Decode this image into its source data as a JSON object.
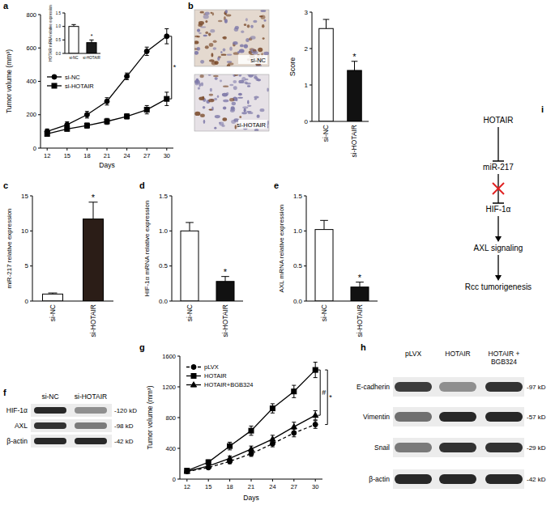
{
  "panel_labels": [
    "a",
    "b",
    "c",
    "d",
    "e",
    "f",
    "g",
    "h",
    "i"
  ],
  "chart_data": [
    {
      "type": "line",
      "xlabel": "Days",
      "ylabel": "Tumor volume (mm³)",
      "x": [
        12,
        15,
        18,
        21,
        24,
        27,
        30
      ],
      "xlim": [
        11,
        31
      ],
      "xticks": [
        12,
        15,
        18,
        21,
        24,
        27,
        30
      ],
      "ylim": [
        0,
        800
      ],
      "yticks": [
        0,
        200,
        400,
        600,
        800
      ],
      "legend": "left",
      "series": [
        {
          "name": "si-NC",
          "color": "#000000",
          "marker": "circle",
          "line_style": "solid",
          "values": [
            100,
            140,
            200,
            280,
            430,
            580,
            670
          ],
          "errors": [
            15,
            18,
            20,
            22,
            20,
            25,
            45
          ]
        },
        {
          "name": "si-HOTAIR",
          "color": "#000000",
          "marker": "square",
          "line_style": "solid",
          "values": [
            85,
            115,
            135,
            160,
            190,
            230,
            295
          ],
          "errors": [
            12,
            12,
            15,
            18,
            15,
            25,
            40
          ]
        }
      ],
      "annotations": [
        "*"
      ]
    },
    {
      "type": "bar",
      "categories": [
        "si-NC",
        "si-HOTAIR"
      ],
      "values": [
        1.0,
        0.4
      ],
      "errors": [
        0.07,
        0.1
      ],
      "colors": [
        "#ffffff",
        "#1a1a1a"
      ],
      "ylabel": "HOTAIR mRNA relative expression",
      "ylim": [
        0,
        1.5
      ],
      "yticks": [
        {
          "value": 0,
          "label": "0.0"
        },
        {
          "value": 0.5,
          "label": "0.5"
        },
        {
          "value": 1,
          "label": "1.0"
        },
        {
          "value": 1.5,
          "label": "1.5"
        }
      ],
      "annotations": [
        "*"
      ]
    },
    {
      "type": "bar",
      "categories": [
        "si-NC",
        "si-HOTAIR"
      ],
      "values": [
        2.55,
        1.4
      ],
      "errors": [
        0.25,
        0.25
      ],
      "colors": [
        "#ffffff",
        "#111111"
      ],
      "ylabel": "Score",
      "ylim": [
        0,
        3
      ],
      "yticks": [
        0,
        1,
        2,
        3
      ],
      "annotations": [
        "*"
      ]
    },
    {
      "type": "bar",
      "categories": [
        "si-NC",
        "si-HOTAIR"
      ],
      "values": [
        1.0,
        11.7
      ],
      "errors": [
        0.15,
        2.4
      ],
      "colors": [
        "#ffffff",
        "#2b1d17"
      ],
      "ylabel": "miR-217 relative expression",
      "ylim": [
        0,
        15
      ],
      "yticks": [
        0,
        5,
        10,
        15
      ],
      "annotations": [
        "*"
      ]
    },
    {
      "type": "bar",
      "categories": [
        "si-NC",
        "si-HOTAIR"
      ],
      "values": [
        1.0,
        0.28
      ],
      "errors": [
        0.12,
        0.07
      ],
      "colors": [
        "#ffffff",
        "#111111"
      ],
      "ylabel": "HIF-1α mRNA relative expression",
      "ylim": [
        0,
        1.5
      ],
      "yticks": [
        {
          "value": 0,
          "label": "0.0"
        },
        {
          "value": 0.5,
          "label": "0.5"
        },
        {
          "value": 1,
          "label": "1.0"
        },
        {
          "value": 1.5,
          "label": "1.5"
        }
      ],
      "annotations": [
        "*"
      ]
    },
    {
      "type": "bar",
      "categories": [
        "si-NC",
        "si-HOTAIR"
      ],
      "values": [
        1.02,
        0.2
      ],
      "errors": [
        0.13,
        0.07
      ],
      "colors": [
        "#ffffff",
        "#111111"
      ],
      "ylabel": "AXL mRNA relative expression",
      "ylim": [
        0,
        1.5
      ],
      "yticks": [
        {
          "value": 0,
          "label": "0.0"
        },
        {
          "value": 0.5,
          "label": "0.5"
        },
        {
          "value": 1,
          "label": "1.0"
        },
        {
          "value": 1.5,
          "label": "1.5"
        }
      ],
      "annotations": [
        "*"
      ]
    },
    {
      "type": "line",
      "xlabel": "Days",
      "ylabel": "Tumor volume (mm³)",
      "x": [
        12,
        15,
        18,
        21,
        24,
        27,
        30
      ],
      "xlim": [
        11,
        31
      ],
      "xticks": [
        12,
        15,
        18,
        21,
        24,
        27,
        30
      ],
      "ylim": [
        0,
        1600
      ],
      "yticks": [
        0,
        400,
        800,
        1200,
        1600
      ],
      "legend": "upper left",
      "series": [
        {
          "name": "pLVX",
          "color": "#000000",
          "marker": "circle",
          "line_style": "dashed",
          "values": [
            100,
            150,
            230,
            330,
            460,
            600,
            710
          ],
          "errors": [
            15,
            20,
            30,
            35,
            40,
            50,
            50
          ]
        },
        {
          "name": "HOTAIR",
          "color": "#000000",
          "marker": "square",
          "line_style": "solid",
          "values": [
            110,
            220,
            430,
            630,
            920,
            1140,
            1420
          ],
          "errors": [
            20,
            30,
            50,
            60,
            60,
            80,
            100
          ]
        },
        {
          "name": "HOTAIR+BGB324",
          "color": "#000000",
          "marker": "triangle",
          "line_style": "solid",
          "values": [
            100,
            170,
            270,
            390,
            520,
            680,
            830
          ],
          "errors": [
            15,
            20,
            30,
            40,
            50,
            60,
            60
          ]
        }
      ],
      "annotations": [
        "*",
        "#"
      ]
    }
  ],
  "ihc_images": {
    "labels": [
      "si-NC",
      "si-HOTAIR"
    ]
  },
  "blots": [
    {
      "columns": [
        "si-NC",
        "si-HOTAIR"
      ],
      "rows": [
        {
          "label": "HIF-1α",
          "size": "-120 kD"
        },
        {
          "label": "AXL",
          "size": "-98 kD"
        },
        {
          "label": "β-actin",
          "size": "-42 kD"
        }
      ]
    },
    {
      "columns": [
        "pLVX",
        "HOTAIR",
        "HOTAIR + BGB324"
      ],
      "rows": [
        {
          "label": "E-cadherin",
          "size": "-97 kD"
        },
        {
          "label": "Vimentin",
          "size": "-57 kD"
        },
        {
          "label": "Snail",
          "size": "-29 kD"
        },
        {
          "label": "β-actin",
          "size": "-42 kD"
        }
      ]
    }
  ],
  "diagram": {
    "nodes": [
      "HOTAIR",
      "miR-217",
      "HIF-1α",
      "AXL signaling",
      "Rcc tumorigenesis"
    ]
  }
}
